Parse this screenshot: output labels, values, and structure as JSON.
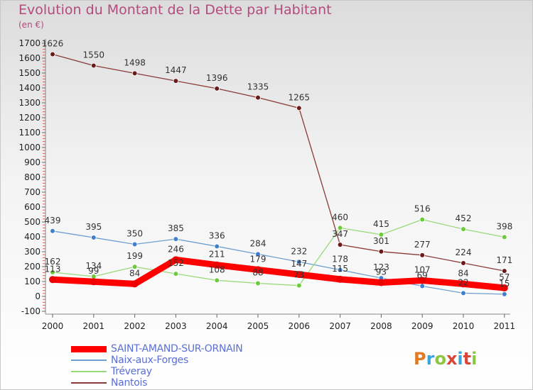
{
  "page": {
    "title": "Evolution du Montant de la Dette par Habitant",
    "subtitle": "(en €)",
    "logo_text": "Proxiti"
  },
  "chart_data": {
    "type": "line",
    "title": "Evolution du Montant de la Dette par Habitant",
    "subtitle": "(en €)",
    "xlabel": "",
    "ylabel": "",
    "x": [
      "2000",
      "2001",
      "2002",
      "2003",
      "2004",
      "2005",
      "2006",
      "2007",
      "2008",
      "2009",
      "2010",
      "2011"
    ],
    "ylim": [
      -100,
      1700
    ],
    "yticks": [
      -100,
      0,
      100,
      200,
      300,
      400,
      500,
      600,
      700,
      800,
      900,
      1000,
      1100,
      1200,
      1300,
      1400,
      1500,
      1600,
      1700
    ],
    "grid": false,
    "legend_position": "bottom-left",
    "series": [
      {
        "name": "SAINT-AMAND-SUR-ORNAIN",
        "color": "#ff0000",
        "marker_color": "#ee0000",
        "emphasis": true,
        "values": [
          113,
          99,
          84,
          246,
          211,
          179,
          147,
          115,
          93,
          107,
          84,
          57
        ]
      },
      {
        "name": "Naix-aux-Forges",
        "color": "#6d9fd0",
        "marker_color": "#3f7fcf",
        "values": [
          439,
          395,
          350,
          385,
          336,
          284,
          232,
          178,
          123,
          69,
          22,
          15
        ]
      },
      {
        "name": "Tréveray",
        "color": "#9ad97a",
        "marker_color": "#6ccb3a",
        "values": [
          162,
          134,
          199,
          152,
          108,
          88,
          73,
          460,
          415,
          516,
          452,
          398
        ]
      },
      {
        "name": "Nantois",
        "color": "#8a3a3a",
        "marker_color": "#6b1a1a",
        "values": [
          1626,
          1550,
          1498,
          1447,
          1396,
          1335,
          1265,
          347,
          301,
          277,
          224,
          171
        ]
      }
    ]
  }
}
